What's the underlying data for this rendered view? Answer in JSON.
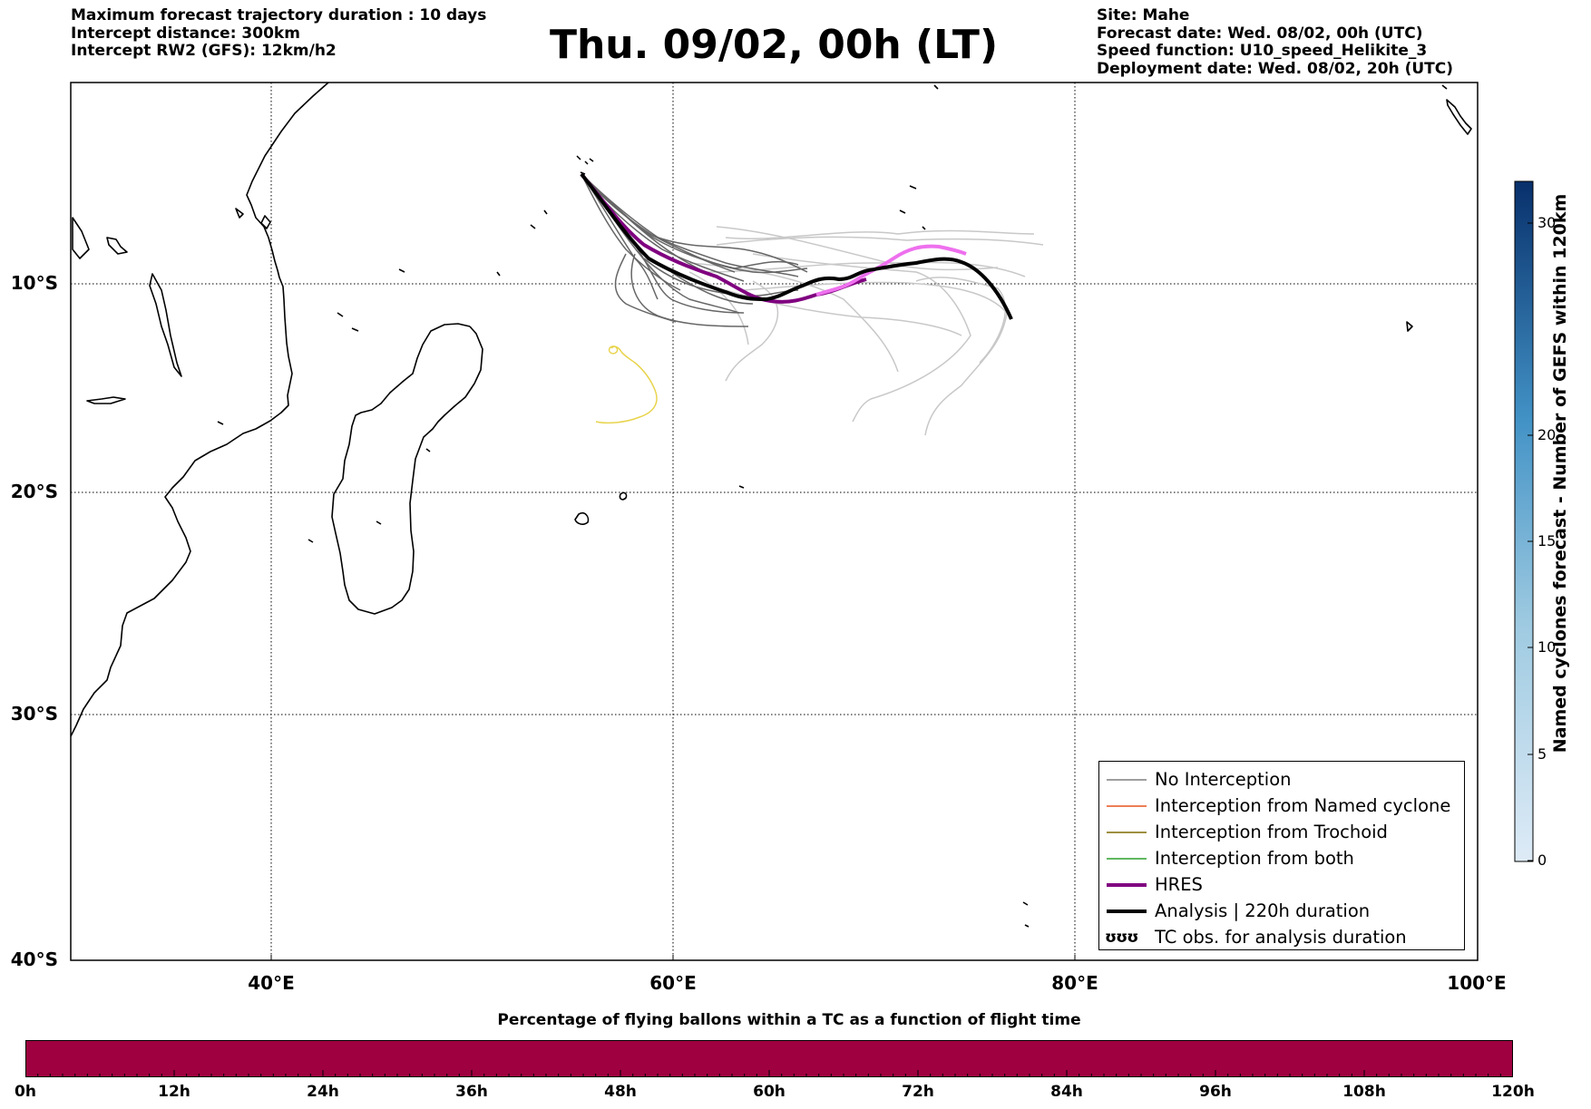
{
  "header_left": [
    "Maximum forecast trajectory duration : 10 days",
    "Intercept distance: 300km",
    "Intercept RW2 (GFS):  12km/h2"
  ],
  "title": "Thu. 09/02, 00h (LT)",
  "header_right": [
    "Site: Mahe",
    "Forecast date: Wed. 08/02, 00h (UTC)",
    "Speed function: U10_speed_Helikite_3",
    "Deployment date: Wed. 08/02, 20h (UTC)"
  ],
  "map": {
    "lon_range": [
      30,
      100
    ],
    "lat_range": [
      -40,
      0
    ],
    "lat_labels": [
      "10°S",
      "20°S",
      "30°S",
      "40°S"
    ],
    "lon_labels": [
      "40°E",
      "60°E",
      "80°E",
      "100°E"
    ],
    "grid": "dotted"
  },
  "legend": {
    "items": [
      {
        "label": "No Interception",
        "color": "#7f7f7f"
      },
      {
        "label": "Interception from Named cyclone",
        "color": "#e8541f"
      },
      {
        "label": "Interception from Trochoid",
        "color": "#7f6a00"
      },
      {
        "label": "Interception from both",
        "color": "#2ca02c"
      },
      {
        "label": "HRES",
        "color": "#800080"
      },
      {
        "label": "Analysis | 220h duration",
        "color": "#000000"
      },
      {
        "label": "TC obs. for analysis duration",
        "symbol": "ʊʊʊ"
      }
    ]
  },
  "colorbar_right": {
    "label": "Named cyclones forecast - Number of GEFS within 120km",
    "ticks": [
      "0",
      "5",
      "10",
      "15",
      "20",
      "30"
    ],
    "color_low": "#deebf7",
    "color_high": "#08306b"
  },
  "bottom_bar": {
    "title": "Percentage of flying ballons within a TC as a function of flight time",
    "labels": [
      "0h",
      "12h",
      "24h",
      "36h",
      "48h",
      "60h",
      "72h",
      "84h",
      "96h",
      "108h",
      "120h"
    ],
    "color": "#9f0040"
  },
  "trajectories": {
    "hres_color": "#800080",
    "hres_late_color": "#ee70ee",
    "analysis_color": "#000000",
    "no_interception_dark": "#666666",
    "no_interception_light": "#c8c8c8",
    "tc_obs_color": "#e8d44d"
  }
}
